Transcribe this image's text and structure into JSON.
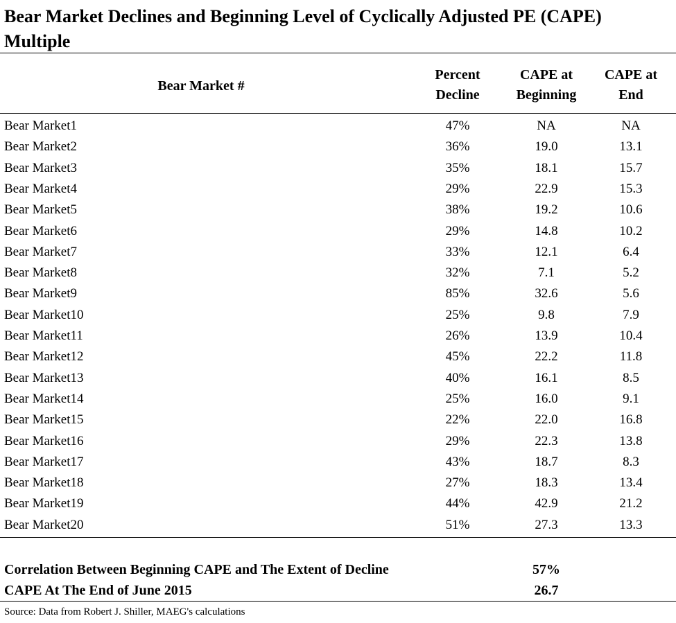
{
  "title": "Bear Market Declines and Beginning Level of Cyclically Adjusted PE (CAPE) Multiple",
  "headers": {
    "name": "Bear Market #",
    "decline_line1": "Percent",
    "decline_line2": "Decline",
    "begin_line1": "CAPE at",
    "begin_line2": "Beginning",
    "end_line1": "CAPE at",
    "end_line2": "End"
  },
  "rows": [
    {
      "name": "Bear Market1",
      "decline": "47%",
      "begin": "NA",
      "end": "NA"
    },
    {
      "name": "Bear Market2",
      "decline": "36%",
      "begin": "19.0",
      "end": "13.1"
    },
    {
      "name": "Bear Market3",
      "decline": "35%",
      "begin": "18.1",
      "end": "15.7"
    },
    {
      "name": "Bear Market4",
      "decline": "29%",
      "begin": "22.9",
      "end": "15.3"
    },
    {
      "name": "Bear Market5",
      "decline": "38%",
      "begin": "19.2",
      "end": "10.6"
    },
    {
      "name": "Bear Market6",
      "decline": "29%",
      "begin": "14.8",
      "end": "10.2"
    },
    {
      "name": "Bear Market7",
      "decline": "33%",
      "begin": "12.1",
      "end": "6.4"
    },
    {
      "name": "Bear Market8",
      "decline": "32%",
      "begin": "7.1",
      "end": "5.2"
    },
    {
      "name": "Bear Market9",
      "decline": "85%",
      "begin": "32.6",
      "end": "5.6"
    },
    {
      "name": "Bear Market10",
      "decline": "25%",
      "begin": "9.8",
      "end": "7.9"
    },
    {
      "name": "Bear Market11",
      "decline": "26%",
      "begin": "13.9",
      "end": "10.4"
    },
    {
      "name": "Bear Market12",
      "decline": "45%",
      "begin": "22.2",
      "end": "11.8"
    },
    {
      "name": "Bear Market13",
      "decline": "40%",
      "begin": "16.1",
      "end": "8.5"
    },
    {
      "name": "Bear Market14",
      "decline": "25%",
      "begin": "16.0",
      "end": "9.1"
    },
    {
      "name": "Bear Market15",
      "decline": "22%",
      "begin": "22.0",
      "end": "16.8"
    },
    {
      "name": "Bear Market16",
      "decline": "29%",
      "begin": "22.3",
      "end": "13.8"
    },
    {
      "name": "Bear Market17",
      "decline": "43%",
      "begin": "18.7",
      "end": "8.3"
    },
    {
      "name": "Bear Market18",
      "decline": "27%",
      "begin": "18.3",
      "end": "13.4"
    },
    {
      "name": "Bear Market19",
      "decline": "44%",
      "begin": "42.9",
      "end": "21.2"
    },
    {
      "name": "Bear Market20",
      "decline": "51%",
      "begin": "27.3",
      "end": "13.3"
    }
  ],
  "summary": {
    "correlation_label": "Correlation Between Beginning CAPE and The Extent of Decline",
    "correlation_value": "57%",
    "current_label": "CAPE At The End of June 2015",
    "current_value": "26.7"
  },
  "source": "Source: Data from Robert J. Shiller, MAEG's calculations"
}
